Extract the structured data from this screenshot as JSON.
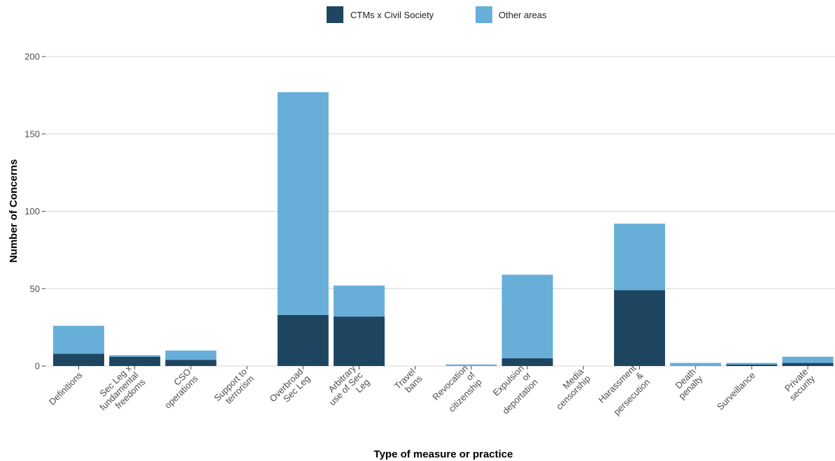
{
  "chart_data": {
    "type": "bar",
    "stacked": true,
    "title": "",
    "xlabel": "Type of measure or practice",
    "ylabel": "Number of Concerns",
    "ylim": [
      0,
      200
    ],
    "yticks": [
      0,
      50,
      100,
      150,
      200
    ],
    "grid": true,
    "legend_position": "top",
    "categories": [
      [
        "Definitions"
      ],
      [
        "Sec Leg x",
        "fundamental",
        "freedoms"
      ],
      [
        "CSO",
        "operations"
      ],
      [
        "Support to",
        "terrorism"
      ],
      [
        "Overbroad",
        "Sec Leg"
      ],
      [
        "Arbitrary",
        "use of Sec",
        "Leg"
      ],
      [
        "Travel",
        "bans"
      ],
      [
        "Revocation",
        "of",
        "citizenship"
      ],
      [
        "Expulsion",
        "or",
        "deportation"
      ],
      [
        "Media",
        "censorship"
      ],
      [
        "Harassment",
        "&",
        "persecution"
      ],
      [
        "Death",
        "penalty"
      ],
      [
        "Surveillance"
      ],
      [
        "Private",
        "security"
      ]
    ],
    "series": [
      {
        "name": "CTMs x Civil Society",
        "color": "#1f4661",
        "values": [
          8,
          6,
          4,
          0,
          33,
          32,
          0,
          0,
          5,
          0,
          49,
          0,
          1,
          2
        ]
      },
      {
        "name": "Other areas",
        "color": "#67afd9",
        "values": [
          18,
          1,
          6,
          0,
          144,
          20,
          0,
          1,
          54,
          0,
          43,
          2,
          1,
          4
        ]
      }
    ]
  }
}
